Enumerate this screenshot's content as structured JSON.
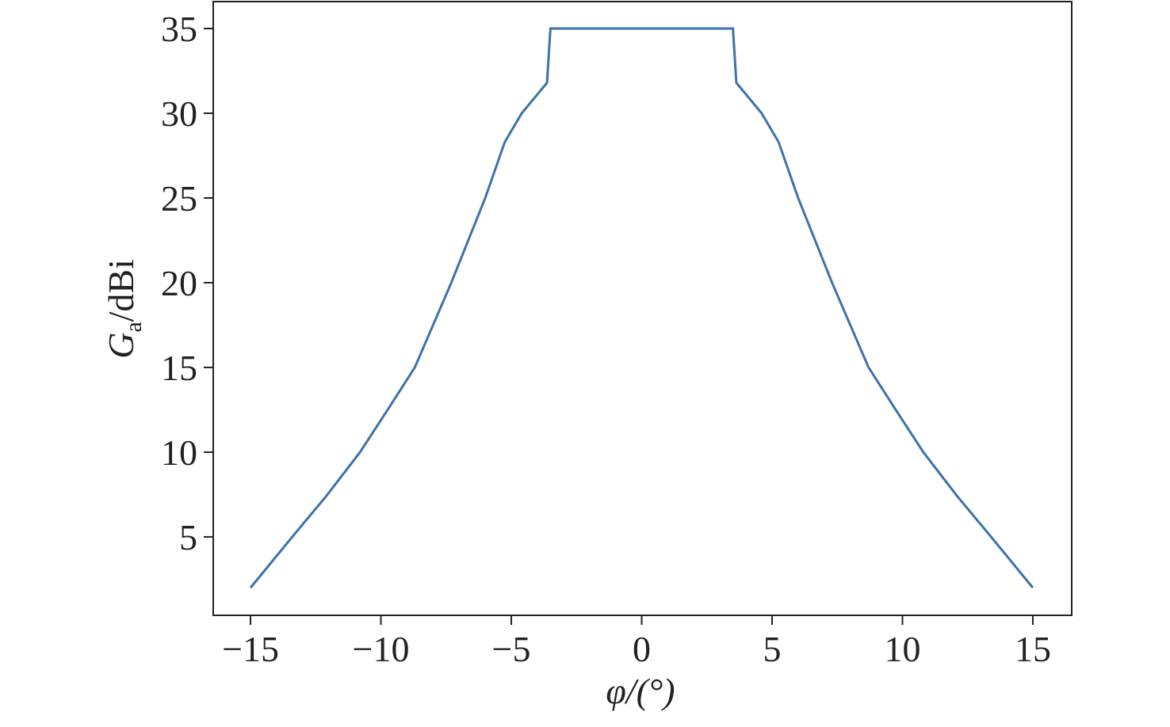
{
  "chart_data": {
    "type": "line",
    "xlabel": "φ/(°)",
    "ylabel": {
      "symbol": "G",
      "subscript": "a",
      "unit": "/dBi"
    },
    "series": [
      {
        "color": "#3d72aa",
        "x": [
          -15,
          -14.2,
          -13.4,
          -12.1,
          -10.8,
          -9.7,
          -8.7,
          -7.3,
          -6.0,
          -5.25,
          -4.6,
          -3.63,
          -3.5,
          3.5,
          3.63,
          4.6,
          5.25,
          6.0,
          7.3,
          8.7,
          9.7,
          10.8,
          12.1,
          13.4,
          14.2,
          15
        ],
        "values": [
          2.0,
          3.5,
          5,
          7.4,
          10,
          12.6,
          15,
          20,
          25,
          28.3,
          30.0,
          31.8,
          35,
          35,
          31.8,
          30.0,
          28.3,
          25,
          20,
          15,
          12.6,
          10,
          7.4,
          5,
          3.5,
          2.0
        ]
      }
    ],
    "xlim": [
      -16.43,
      16.49
    ],
    "ylim": [
      0.37,
      36.59
    ],
    "xticks": [
      {
        "value": -15,
        "label": "−15"
      },
      {
        "value": -10,
        "label": "−10"
      },
      {
        "value": -5,
        "label": "−5"
      },
      0,
      5,
      10,
      15
    ],
    "yticks": [
      5,
      10,
      15,
      20,
      25,
      30,
      35
    ]
  }
}
